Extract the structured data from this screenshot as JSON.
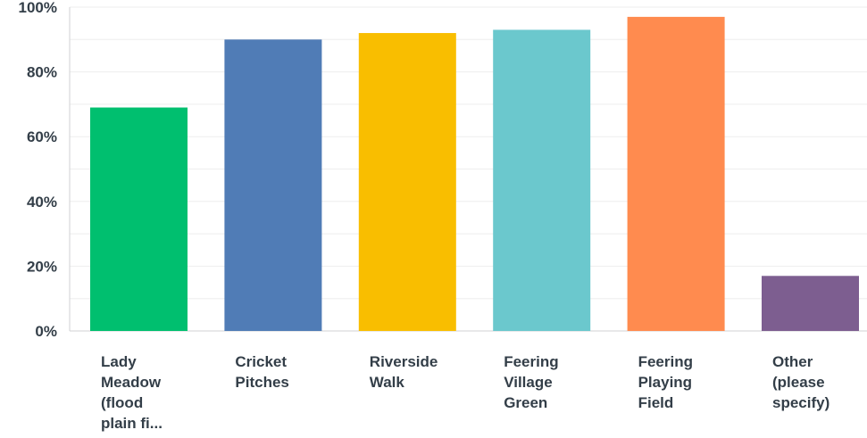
{
  "chart_data": {
    "type": "bar",
    "title": "",
    "xlabel": "",
    "ylabel": "",
    "ylim": [
      0,
      100
    ],
    "yticks": [
      "0%",
      "20%",
      "40%",
      "60%",
      "80%",
      "100%"
    ],
    "grid": true,
    "legend": "none",
    "categories": [
      [
        "Lady",
        "Meadow",
        "(flood",
        "plain fi..."
      ],
      [
        "Cricket",
        "Pitches"
      ],
      [
        "Riverside",
        "Walk"
      ],
      [
        "Feering",
        "Village",
        "Green"
      ],
      [
        "Feering",
        "Playing",
        "Field"
      ],
      [
        "Other",
        "(please",
        "specify)"
      ]
    ],
    "values": [
      69,
      90,
      92,
      93,
      97,
      17
    ],
    "colors": [
      "#00bf6f",
      "#507cb6",
      "#f9be00",
      "#6bc8cd",
      "#ff8b4f",
      "#7d5e90"
    ]
  }
}
